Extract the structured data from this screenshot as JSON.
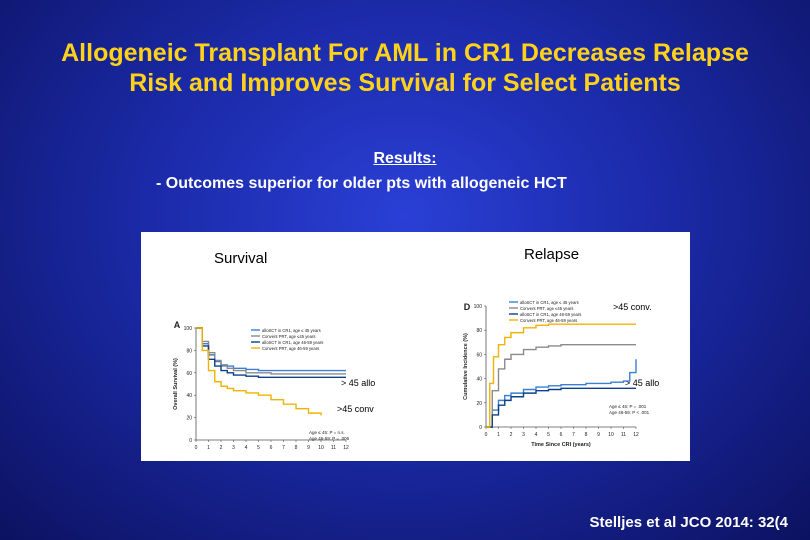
{
  "slide": {
    "title_line1": "Allogeneic Transplant For AML in CR1 Decreases Relapse",
    "title_line2": "Risk and Improves Survival for Select Patients",
    "results_heading": "Results:",
    "results_point": "-  Outcomes superior for older pts with allogeneic HCT",
    "citation": "Stelljes et al JCO 2014: 32(4"
  },
  "annotations": {
    "survival_label": "Survival",
    "relapse_label": "Relapse",
    "survival_allo": "> 45 allo",
    "survival_conv": ">45 conv",
    "relapse_conv": ">45 conv.",
    "relapse_allo": "> 45 allo"
  },
  "colors": {
    "allo_young": "#3a7fd0",
    "conv_young": "#8a8a8a",
    "allo_old": "#0d3f8a",
    "conv_old": "#f0b400",
    "title": "#ffd21a"
  },
  "chart_data": [
    {
      "type": "line",
      "panel": "A",
      "ylabel": "Overall Survival (%)",
      "xlabel": "",
      "x_ticks": [
        0,
        1,
        2,
        3,
        4,
        5,
        6,
        7,
        8,
        9,
        10,
        11,
        12
      ],
      "y_ticks": [
        0,
        20,
        40,
        60,
        80,
        100
      ],
      "xlim": [
        0,
        12
      ],
      "ylim": [
        0,
        100
      ],
      "legend": [
        "alloSCT in CR1, age ≤ 45 years",
        "Convent PRT, age ≤45 years",
        "alloSCT in CR1, age 46-59 years",
        "Convent PRT, age 46-59 years"
      ],
      "pvalues": [
        "Age ≤ 45: P = n.s.",
        "Age 46-59: P = .006"
      ],
      "series": [
        {
          "name": "alloSCT in CR1, age ≤ 45 years",
          "color": "#3a7fd0",
          "x": [
            0,
            0.5,
            1,
            1.5,
            2,
            2.5,
            3,
            4,
            5,
            6,
            8,
            10,
            12
          ],
          "y": [
            100,
            86,
            76,
            70,
            67,
            66,
            64,
            63,
            62,
            62,
            62,
            62,
            62
          ]
        },
        {
          "name": "Convent PRT, age ≤45 years",
          "color": "#8a8a8a",
          "x": [
            0,
            0.5,
            1,
            1.5,
            2,
            2.5,
            3,
            4,
            5,
            6,
            8,
            10,
            12
          ],
          "y": [
            100,
            88,
            78,
            71,
            66,
            64,
            62,
            60,
            60,
            59,
            59,
            59,
            59
          ]
        },
        {
          "name": "alloSCT in CR1, age 46-59 years",
          "color": "#0d3f8a",
          "x": [
            0,
            0.5,
            1,
            1.5,
            2,
            2.5,
            3,
            4,
            5,
            6,
            8,
            10,
            12
          ],
          "y": [
            100,
            84,
            72,
            66,
            62,
            60,
            58,
            57,
            56,
            56,
            56,
            56,
            56
          ]
        },
        {
          "name": "Convent PRT, age 46-59 years",
          "color": "#f0b400",
          "x": [
            0,
            0.5,
            1,
            1.5,
            2,
            2.5,
            3,
            4,
            5,
            6,
            7,
            8,
            9,
            10
          ],
          "y": [
            100,
            80,
            62,
            52,
            48,
            46,
            44,
            42,
            40,
            36,
            32,
            28,
            24,
            22
          ]
        }
      ]
    },
    {
      "type": "line",
      "panel": "D",
      "ylabel": "Cumulative Incidence (%)",
      "xlabel": "Time Since CRI (years)",
      "x_ticks": [
        0,
        1,
        2,
        3,
        4,
        5,
        6,
        7,
        8,
        9,
        10,
        11,
        12
      ],
      "y_ticks": [
        0,
        20,
        40,
        60,
        80,
        100
      ],
      "xlim": [
        0,
        12
      ],
      "ylim": [
        0,
        100
      ],
      "legend": [
        "alloSCT in CR1, age ≤ 45 years",
        "Convent PRT, age ≤45 years",
        "alloSCT in CR1, age 46-59 years",
        "Convent PRT, age 46-59 years"
      ],
      "pvalues": [
        "Age ≤ 45: P = .001",
        "Age 46-59: P < .001"
      ],
      "series": [
        {
          "name": "alloSCT in CR1, age ≤ 45 years",
          "color": "#3a7fd0",
          "x": [
            0,
            0.5,
            1,
            1.5,
            2,
            3,
            4,
            5,
            6,
            8,
            10,
            11,
            11.5,
            12
          ],
          "y": [
            0,
            14,
            22,
            26,
            28,
            31,
            33,
            34,
            35,
            36,
            37,
            38,
            45,
            56
          ]
        },
        {
          "name": "Convent PRT, age ≤45 years",
          "color": "#8a8a8a",
          "x": [
            0,
            0.5,
            1,
            1.5,
            2,
            3,
            4,
            5,
            6,
            8,
            10,
            12
          ],
          "y": [
            0,
            30,
            48,
            56,
            60,
            64,
            66,
            67,
            68,
            68,
            68,
            68
          ]
        },
        {
          "name": "alloSCT in CR1, age 46-59 years",
          "color": "#0d3f8a",
          "x": [
            0,
            0.5,
            1,
            1.5,
            2,
            3,
            4,
            5,
            6,
            8,
            10,
            12
          ],
          "y": [
            0,
            10,
            18,
            22,
            25,
            28,
            30,
            31,
            32,
            32,
            32,
            32
          ]
        },
        {
          "name": "Convent PRT, age 46-59 years",
          "color": "#f0b400",
          "x": [
            0,
            0.3,
            0.6,
            1,
            1.5,
            2,
            3,
            4,
            5,
            6,
            8,
            10,
            12
          ],
          "y": [
            0,
            36,
            58,
            68,
            74,
            78,
            82,
            84,
            85,
            85,
            85,
            85,
            85
          ]
        }
      ]
    }
  ]
}
